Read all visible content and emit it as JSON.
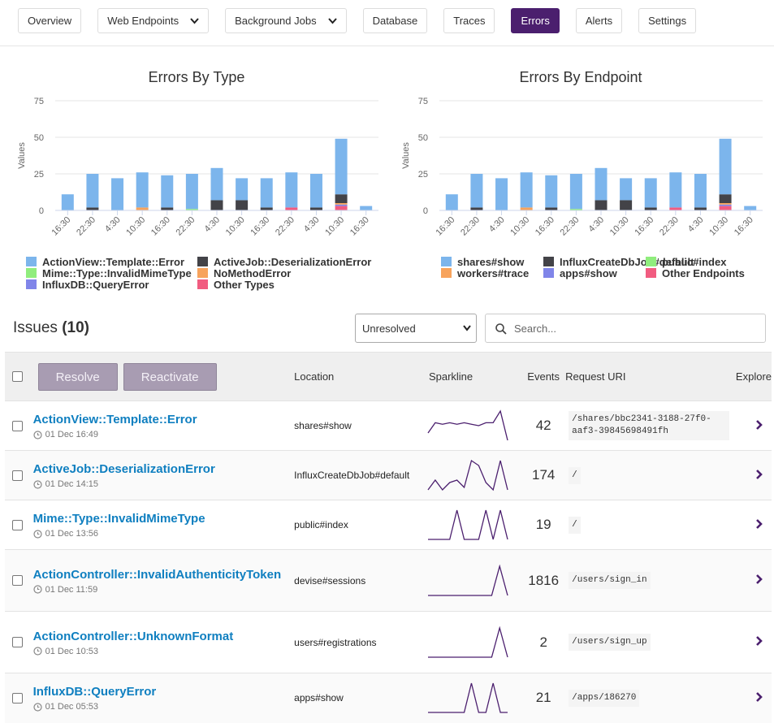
{
  "nav": {
    "tabs": [
      {
        "label": "Overview",
        "dropdown": false
      },
      {
        "label": "Web Endpoints",
        "dropdown": true
      },
      {
        "label": "Background Jobs",
        "dropdown": true
      },
      {
        "label": "Database",
        "dropdown": false
      },
      {
        "label": "Traces",
        "dropdown": false
      },
      {
        "label": "Errors",
        "dropdown": false
      },
      {
        "label": "Alerts",
        "dropdown": false
      },
      {
        "label": "Settings",
        "dropdown": false
      }
    ],
    "active_index": 5
  },
  "chart_data": [
    {
      "type": "stacked_bar",
      "title": "Errors By Type",
      "y_label": "Values",
      "categories": [
        "16:30",
        "22:30",
        "4:30",
        "10:30",
        "16:30",
        "22:30",
        "4:30",
        "10:30",
        "16:30",
        "22:30",
        "4:30",
        "10:30",
        "16:30"
      ],
      "ylim": [
        0,
        75
      ],
      "yticks": [
        0,
        25,
        50,
        75
      ],
      "grid": true,
      "series": [
        {
          "name": "ActionView::Template::Error",
          "color": "#7cb5ec",
          "values": [
            11,
            23,
            22,
            24,
            22,
            24,
            22,
            15,
            20,
            24,
            23,
            38,
            3
          ]
        },
        {
          "name": "ActiveJob::DeserializationError",
          "color": "#434348",
          "values": [
            0,
            2,
            0,
            0,
            2,
            0,
            7,
            7,
            2,
            0,
            2,
            6,
            0
          ]
        },
        {
          "name": "Mime::Type::InvalidMimeType",
          "color": "#90ed7d",
          "values": [
            0,
            0,
            0,
            0,
            0,
            1,
            0,
            0,
            0,
            0,
            0,
            0,
            0
          ]
        },
        {
          "name": "NoMethodError",
          "color": "#f7a35c",
          "values": [
            0,
            0,
            0,
            2,
            0,
            0,
            0,
            0,
            0,
            0,
            0,
            1,
            0
          ]
        },
        {
          "name": "InfluxDB::QueryError",
          "color": "#8085e9",
          "values": [
            0,
            0,
            0,
            0,
            0,
            0,
            0,
            0,
            0,
            0,
            0,
            1,
            0
          ]
        },
        {
          "name": "Other Types",
          "color": "#f15c80",
          "values": [
            0,
            0,
            0,
            0,
            0,
            0,
            0,
            0,
            0,
            2,
            0,
            3,
            0
          ]
        }
      ]
    },
    {
      "type": "stacked_bar",
      "title": "Errors By Endpoint",
      "y_label": "Values",
      "categories": [
        "16:30",
        "22:30",
        "4:30",
        "10:30",
        "16:30",
        "22:30",
        "4:30",
        "10:30",
        "16:30",
        "22:30",
        "4:30",
        "10:30",
        "16:30"
      ],
      "ylim": [
        0,
        75
      ],
      "yticks": [
        0,
        25,
        50,
        75
      ],
      "grid": true,
      "series": [
        {
          "name": "shares#show",
          "color": "#7cb5ec",
          "values": [
            11,
            23,
            22,
            24,
            22,
            24,
            22,
            15,
            20,
            24,
            23,
            38,
            3
          ]
        },
        {
          "name": "InfluxCreateDbJob#default",
          "color": "#434348",
          "values": [
            0,
            2,
            0,
            0,
            2,
            0,
            7,
            7,
            2,
            0,
            2,
            6,
            0
          ]
        },
        {
          "name": "public#index",
          "color": "#90ed7d",
          "values": [
            0,
            0,
            0,
            0,
            0,
            1,
            0,
            0,
            0,
            0,
            0,
            0,
            0
          ]
        },
        {
          "name": "workers#trace",
          "color": "#f7a35c",
          "values": [
            0,
            0,
            0,
            2,
            0,
            0,
            0,
            0,
            0,
            0,
            0,
            1,
            0
          ]
        },
        {
          "name": "apps#show",
          "color": "#8085e9",
          "values": [
            0,
            0,
            0,
            0,
            0,
            0,
            0,
            0,
            0,
            0,
            0,
            1,
            0
          ]
        },
        {
          "name": "Other Endpoints",
          "color": "#f15c80",
          "values": [
            0,
            0,
            0,
            0,
            0,
            0,
            0,
            0,
            0,
            2,
            0,
            3,
            0
          ]
        }
      ]
    }
  ],
  "issues": {
    "title": "Issues",
    "count": "(10)",
    "status_filter": "Unresolved",
    "search_placeholder": "Search...",
    "buttons": [
      "Resolve",
      "Reactivate"
    ],
    "columns": [
      "Location",
      "Sparkline",
      "Events",
      "Request URI",
      "Explore"
    ],
    "rows": [
      {
        "name": "ActionView::Template::Error",
        "time": "01 Dec 16:49",
        "location": "shares#show",
        "sparkline": [
          5,
          12,
          11,
          12,
          11,
          12,
          11,
          10,
          12,
          12,
          20,
          0
        ],
        "events": "42",
        "uri": "/shares/bbc2341-3188-27f0-aaf3-39845698491fh"
      },
      {
        "name": "ActiveJob::DeserializationError",
        "time": "01 Dec 14:15",
        "location": "InfluxCreateDbJob#default",
        "sparkline": [
          0,
          4,
          0,
          3,
          4,
          1,
          12,
          10,
          3,
          0,
          12,
          0
        ],
        "events": "174",
        "uri": "/"
      },
      {
        "name": "Mime::Type::InvalidMimeType",
        "time": "01 Dec 13:56",
        "location": "public#index",
        "sparkline": [
          0,
          0,
          0,
          0,
          1,
          0,
          0,
          0,
          1,
          0,
          1,
          0
        ],
        "events": "19",
        "uri": "/"
      },
      {
        "name": "ActionController::InvalidAuthenticityToken",
        "time": "01 Dec 11:59",
        "location": "devise#sessions",
        "sparkline": [
          0,
          0,
          0,
          0,
          0,
          0,
          0,
          0,
          0,
          1,
          0
        ],
        "events": "1816",
        "uri": "/users/sign_in"
      },
      {
        "name": "ActionController::UnknownFormat",
        "time": "01 Dec 10:53",
        "location": "users#registrations",
        "sparkline": [
          0,
          0,
          0,
          0,
          0,
          0,
          0,
          0,
          0,
          1,
          0
        ],
        "events": "2",
        "uri": "/users/sign_up"
      },
      {
        "name": "InfluxDB::QueryError",
        "time": "01 Dec 05:53",
        "location": "apps#show",
        "sparkline": [
          0,
          0,
          0,
          0,
          0,
          0,
          1,
          0,
          0,
          1,
          0,
          0
        ],
        "events": "21",
        "uri": "/apps/186270"
      }
    ]
  }
}
